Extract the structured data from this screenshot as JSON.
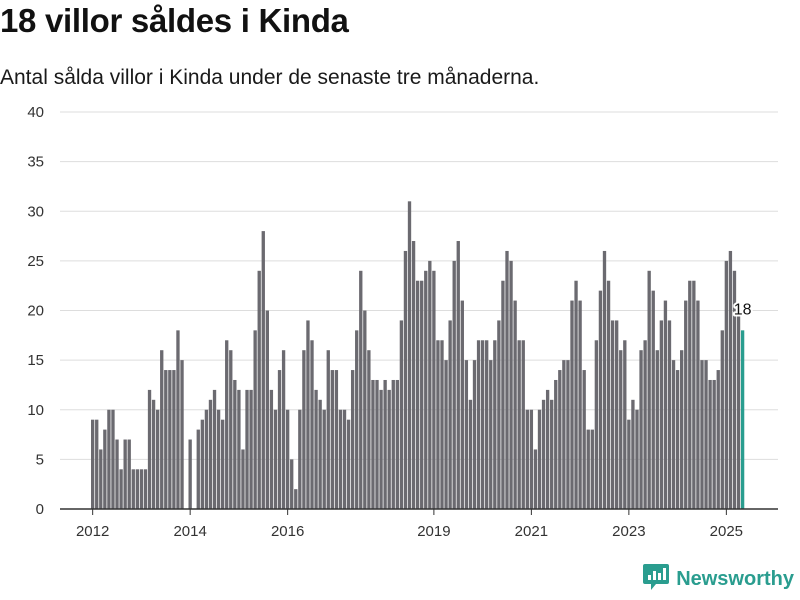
{
  "page": {
    "title": "18 villor såldes i Kinda",
    "subtitle": "Antal sålda villor i Kinda under de senaste tre månaderna."
  },
  "brand": {
    "name": "Newsworthy",
    "icon": "newsworthy-logo-icon"
  },
  "colors": {
    "bar": "#6b6a70",
    "highlight": "#2a9d8f",
    "grid": "#dddddd",
    "axis": "#333333"
  },
  "chart_data": {
    "type": "bar",
    "title": "18 villor såldes i Kinda",
    "subtitle": "Antal sålda villor i Kinda under de senaste tre månaderna.",
    "xlabel": "",
    "ylabel": "",
    "ylim": [
      0,
      40
    ],
    "yticks": [
      0,
      5,
      10,
      15,
      20,
      25,
      30,
      35,
      40
    ],
    "xticks": [
      {
        "label": "2012",
        "at": "2012-01"
      },
      {
        "label": "2014",
        "at": "2014-01"
      },
      {
        "label": "2016",
        "at": "2016-01"
      },
      {
        "label": "2019",
        "at": "2019-01"
      },
      {
        "label": "2021",
        "at": "2021-01"
      },
      {
        "label": "2023",
        "at": "2023-01"
      },
      {
        "label": "2025",
        "at": "2025-01"
      }
    ],
    "grid": true,
    "start_month": "2012-01",
    "values": [
      9,
      9,
      6,
      8,
      10,
      10,
      7,
      4,
      7,
      7,
      4,
      4,
      4,
      4,
      12,
      11,
      10,
      16,
      14,
      14,
      14,
      18,
      15,
      0,
      7,
      0,
      8,
      9,
      10,
      11,
      12,
      10,
      9,
      17,
      16,
      13,
      12,
      6,
      12,
      12,
      18,
      24,
      28,
      20,
      12,
      10,
      14,
      16,
      10,
      5,
      2,
      10,
      16,
      19,
      17,
      12,
      11,
      10,
      16,
      14,
      14,
      10,
      10,
      9,
      14,
      18,
      24,
      20,
      16,
      13,
      13,
      12,
      13,
      12,
      13,
      13,
      19,
      26,
      31,
      27,
      23,
      23,
      24,
      25,
      24,
      17,
      17,
      15,
      19,
      25,
      27,
      21,
      15,
      11,
      15,
      17,
      17,
      17,
      15,
      17,
      19,
      23,
      26,
      25,
      21,
      17,
      17,
      10,
      10,
      6,
      10,
      11,
      12,
      11,
      13,
      14,
      15,
      15,
      21,
      23,
      21,
      14,
      8,
      8,
      17,
      22,
      26,
      23,
      19,
      19,
      16,
      17,
      9,
      11,
      10,
      16,
      17,
      24,
      22,
      16,
      19,
      21,
      19,
      15,
      14,
      16,
      21,
      23,
      23,
      21,
      15,
      15,
      13,
      13,
      14,
      18,
      25,
      26,
      24,
      20,
      18
    ],
    "highlight_last": true,
    "annotations": [
      {
        "label": "18",
        "index": "last"
      }
    ]
  }
}
